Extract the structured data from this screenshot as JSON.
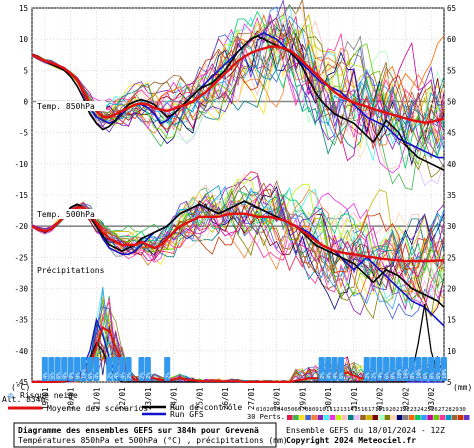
{
  "chart_data": {
    "type": "line",
    "chart_title": "Diagramme des ensembles GEFS sur 384h pour Grevenä",
    "chart_subtitle": "Températures 850hPa et 500hPa (°C) , précipitations (mm)",
    "run_info": "Ensemble GEFS du 18/01/2024 - 12Z",
    "copyright": "Copyright 2024 Meteociel.fr",
    "altitude_label": "Alt. 834m",
    "unit_left": "(°C)",
    "unit_right": "(mm)",
    "snow_risk_label": "Risque neige",
    "pert_count_label": "30 Perts.",
    "panels": {
      "t850": "Temp. 850hPa",
      "t500": "Temp. 500hPa",
      "precip": "Précipitations"
    },
    "y_left_ticks": [
      15,
      10,
      5,
      0,
      -5,
      -10,
      -15,
      -20,
      -25,
      -30,
      -35,
      -40,
      -45
    ],
    "y_right_ticks": [
      65,
      60,
      55,
      50,
      45,
      40,
      35,
      30,
      25,
      20,
      15,
      10,
      5
    ],
    "ylim": [
      -45,
      15
    ],
    "x_dates": [
      "19/01",
      "20/01",
      "21/01",
      "22/01",
      "23/01",
      "24/01",
      "25/01",
      "26/01",
      "27/01",
      "28/01",
      "29/01",
      "30/01",
      "31/01",
      "01/02",
      "02/02",
      "03/02"
    ],
    "legend": {
      "mean": "Moyenne des scénarios",
      "control": "Run de contrôle",
      "gfs": "Run GFS"
    },
    "pert_numbers": [
      "01",
      "02",
      "03",
      "04",
      "05",
      "06",
      "07",
      "08",
      "09",
      "10",
      "11",
      "12",
      "13",
      "14",
      "15",
      "16",
      "17",
      "18",
      "19",
      "20",
      "21",
      "22",
      "23",
      "24",
      "25",
      "26",
      "27",
      "28",
      "29",
      "30"
    ],
    "pert_colors": [
      "#e6194b",
      "#3cb44b",
      "#ffe119",
      "#4363d8",
      "#f58231",
      "#911eb4",
      "#46f0f0",
      "#f032e6",
      "#bcf60c",
      "#fabebe",
      "#008080",
      "#e6beff",
      "#9a6324",
      "#c8b400",
      "#800000",
      "#aaffc3",
      "#808000",
      "#ffd8b1",
      "#000075",
      "#808080",
      "#ff6600",
      "#00cc66",
      "#3399ff",
      "#cc0099",
      "#66cc00",
      "#ff3399",
      "#0099cc",
      "#996633",
      "#cc3300",
      "#6633cc"
    ],
    "snow_badges": {
      "2": "4%",
      "3": "6%",
      "4": "6%",
      "5": "8%",
      "6": "8%",
      "7": "8%",
      "8": "10%",
      "9": "6%",
      "10": "4%",
      "12": "2%",
      "13": "4%",
      "14": "4%",
      "15": "2%",
      "17": "2%",
      "18": "2%",
      "21": "2%",
      "45": "2%",
      "46": "4%",
      "47": "4%",
      "48": "6%",
      "52": "2%",
      "53": "2%",
      "54": "4%",
      "55": "6%",
      "56": "8%",
      "57": "10%",
      "58": "10%",
      "59": "8%",
      "60": "10%",
      "61": "6%",
      "62": "8%",
      "63": "6%",
      "64": "10%"
    },
    "series": [
      {
        "name": "Moyenne des scénarios",
        "t850": [
          7.5,
          7,
          6.5,
          6.2,
          5.8,
          5.3,
          4.5,
          3.5,
          1.5,
          -0.5,
          -1.5,
          -2.5,
          -2.5,
          -2,
          -1.5,
          -1,
          -0.5,
          -0.3,
          -0.5,
          -1,
          -1.3,
          -1.5,
          -1.2,
          -0.8,
          -0.5,
          0,
          0.8,
          1.5,
          2.5,
          3.5,
          4.5,
          5.5,
          6.5,
          7.2,
          7.8,
          8.2,
          8.5,
          8.8,
          8.8,
          8.6,
          8.2,
          7.5,
          6.5,
          5.5,
          4.5,
          3.5,
          2.5,
          1.5,
          0.8,
          0.3,
          -0.2,
          -0.5,
          -0.8,
          -1.2,
          -1.5,
          -1.8,
          -2.1,
          -2.4,
          -2.7,
          -3,
          -3.2,
          -3.4,
          -3.3,
          -3,
          -2.8
        ],
        "t500": [
          -20,
          -20.5,
          -20.8,
          -20.5,
          -19.5,
          -18.5,
          -17.5,
          -17,
          -17,
          -18,
          -19.5,
          -21,
          -22,
          -22.5,
          -23,
          -23,
          -23,
          -22.5,
          -23,
          -23.5,
          -23,
          -22,
          -21,
          -20,
          -19.5,
          -19,
          -18.5,
          -18.5,
          -18.5,
          -18.5,
          -18.2,
          -18,
          -18,
          -18,
          -18.2,
          -18.5,
          -18.5,
          -18.5,
          -18.8,
          -19,
          -19.5,
          -20,
          -20.8,
          -21.5,
          -22.3,
          -23,
          -23.5,
          -24,
          -24.2,
          -24.4,
          -24.5,
          -24.7,
          -24.9,
          -25,
          -25.2,
          -25.3,
          -25.4,
          -25.5,
          -25.6,
          -25.6,
          -25.6,
          -25.6,
          -25.6,
          -25.5,
          -25.5
        ],
        "precip": [
          0,
          0,
          0,
          0,
          0,
          0.1,
          0.3,
          0.5,
          1,
          2,
          4.5,
          7,
          6.5,
          4.5,
          2.5,
          1,
          0.3,
          0.3,
          0.4,
          0.5,
          0.3,
          0.2,
          0.3,
          0.5,
          0.3,
          0.2,
          0.1,
          0.1,
          0.1,
          0.1,
          0.1,
          0.1,
          0.1,
          0,
          0,
          0,
          0,
          0,
          0,
          0,
          0,
          0.2,
          0.3,
          0.5,
          0.5,
          0.5,
          0.7,
          0.8,
          1,
          1.2,
          0.8,
          0.5,
          0.4,
          0.3,
          0.3,
          0.4,
          0.5,
          0.6,
          0.6,
          0.5,
          0.6,
          0.8,
          1,
          1.2,
          1
        ]
      },
      {
        "name": "Run de contrôle",
        "t850": [
          7.5,
          7,
          6.5,
          6,
          5.5,
          5,
          4,
          2.5,
          0.5,
          -2,
          -3.5,
          -4.5,
          -4,
          -3,
          -1.5,
          -0.5,
          0,
          0.3,
          0,
          -0.5,
          -1.5,
          -2.5,
          -2,
          -1,
          0,
          1,
          2,
          2.5,
          3,
          4,
          5,
          6.5,
          8,
          9,
          10,
          10.5,
          10,
          9.5,
          9,
          8.5,
          8,
          7,
          5.5,
          3.5,
          1.5,
          0,
          -1,
          -2,
          -2.5,
          -3,
          -3.5,
          -4.5,
          -5.5,
          -6.5,
          -5,
          -3,
          -4,
          -5,
          -7,
          -8,
          -9,
          -9.5,
          -10,
          -10.5,
          -11
        ],
        "t500": [
          -20,
          -20.5,
          -21,
          -20.5,
          -19.5,
          -18.5,
          -17,
          -16.5,
          -17,
          -18.5,
          -20,
          -21.5,
          -23,
          -23.5,
          -24,
          -23.5,
          -23,
          -22,
          -21.5,
          -21,
          -20.5,
          -20,
          -19,
          -18,
          -17.5,
          -17,
          -16.5,
          -17,
          -17.5,
          -18,
          -17.5,
          -17,
          -16.5,
          -16,
          -16.5,
          -17,
          -17.5,
          -18,
          -18.5,
          -19,
          -19.5,
          -20,
          -21,
          -22,
          -23,
          -23.5,
          -24,
          -24.5,
          -25,
          -25.5,
          -26,
          -27,
          -28,
          -29,
          -28,
          -27,
          -27.5,
          -28,
          -29,
          -30,
          -30.5,
          -31,
          -31.5,
          -32,
          -33
        ],
        "precip": [
          0,
          0,
          0,
          0,
          0,
          0,
          0.2,
          0.5,
          1.5,
          3,
          5,
          4,
          2,
          0.5,
          0,
          0,
          0,
          0,
          0,
          0,
          0,
          0,
          0,
          0,
          0,
          0,
          0,
          0,
          0,
          0,
          0,
          0,
          0,
          0,
          0,
          0,
          0,
          0,
          0,
          0,
          0,
          0,
          0,
          0,
          0,
          0,
          0,
          0,
          0,
          0,
          0,
          0,
          0,
          0,
          0,
          0,
          0,
          0,
          0,
          1,
          5,
          10,
          4,
          1,
          0
        ]
      },
      {
        "name": "Run GFS",
        "t850": [
          7.5,
          7,
          6.5,
          6,
          5.5,
          5,
          4.5,
          3.5,
          1.5,
          -1,
          -2.5,
          -3,
          -3.5,
          -3,
          -2,
          -1,
          -0.5,
          -0.5,
          -1,
          -2,
          -3.5,
          -3,
          -2,
          -1,
          0,
          1,
          2,
          3,
          4,
          5,
          6,
          7,
          8,
          9,
          10,
          10.5,
          11,
          10.5,
          10,
          9,
          8,
          7,
          6,
          5,
          4,
          3,
          2.5,
          2,
          1.5,
          0.5,
          -0.5,
          -1.5,
          -2.5,
          -3,
          -3.5,
          -4,
          -5,
          -6,
          -6.5,
          -7,
          -7.5,
          -8,
          -8.5,
          -9,
          -9
        ],
        "t500": [
          -20,
          -20.5,
          -21,
          -20.5,
          -19.5,
          -18.5,
          -17,
          -16.5,
          -17,
          -18.5,
          -20,
          -22,
          -23.5,
          -24,
          -24.5,
          -24.5,
          -24,
          -23,
          -22,
          -21,
          -20.5,
          -20,
          -19,
          -18,
          -17.5,
          -17,
          -16.5,
          -17,
          -17.5,
          -18,
          -17.5,
          -17,
          -16.5,
          -16,
          -16.5,
          -17,
          -17.5,
          -18,
          -18.5,
          -19,
          -19.5,
          -20,
          -20.5,
          -21,
          -22,
          -23,
          -23.5,
          -24,
          -25,
          -26,
          -27,
          -26,
          -25,
          -26,
          -27,
          -28,
          -29,
          -30,
          -31,
          -32,
          -32.5,
          -33,
          -34,
          -35,
          -36
        ],
        "precip": [
          0,
          0,
          0,
          0,
          0,
          0,
          0.2,
          0.5,
          2,
          4,
          8,
          6,
          3,
          1,
          0,
          0,
          0,
          0,
          0,
          0,
          0,
          0,
          0,
          0,
          0,
          0,
          0,
          0,
          0,
          0,
          0,
          0,
          0,
          0,
          0,
          0,
          0,
          0,
          0,
          0,
          0,
          0,
          0,
          0,
          0,
          0,
          0,
          0,
          0,
          0,
          0,
          0,
          0,
          0,
          0,
          0,
          0,
          0,
          0,
          0,
          0,
          0,
          0,
          0,
          0
        ]
      }
    ]
  }
}
